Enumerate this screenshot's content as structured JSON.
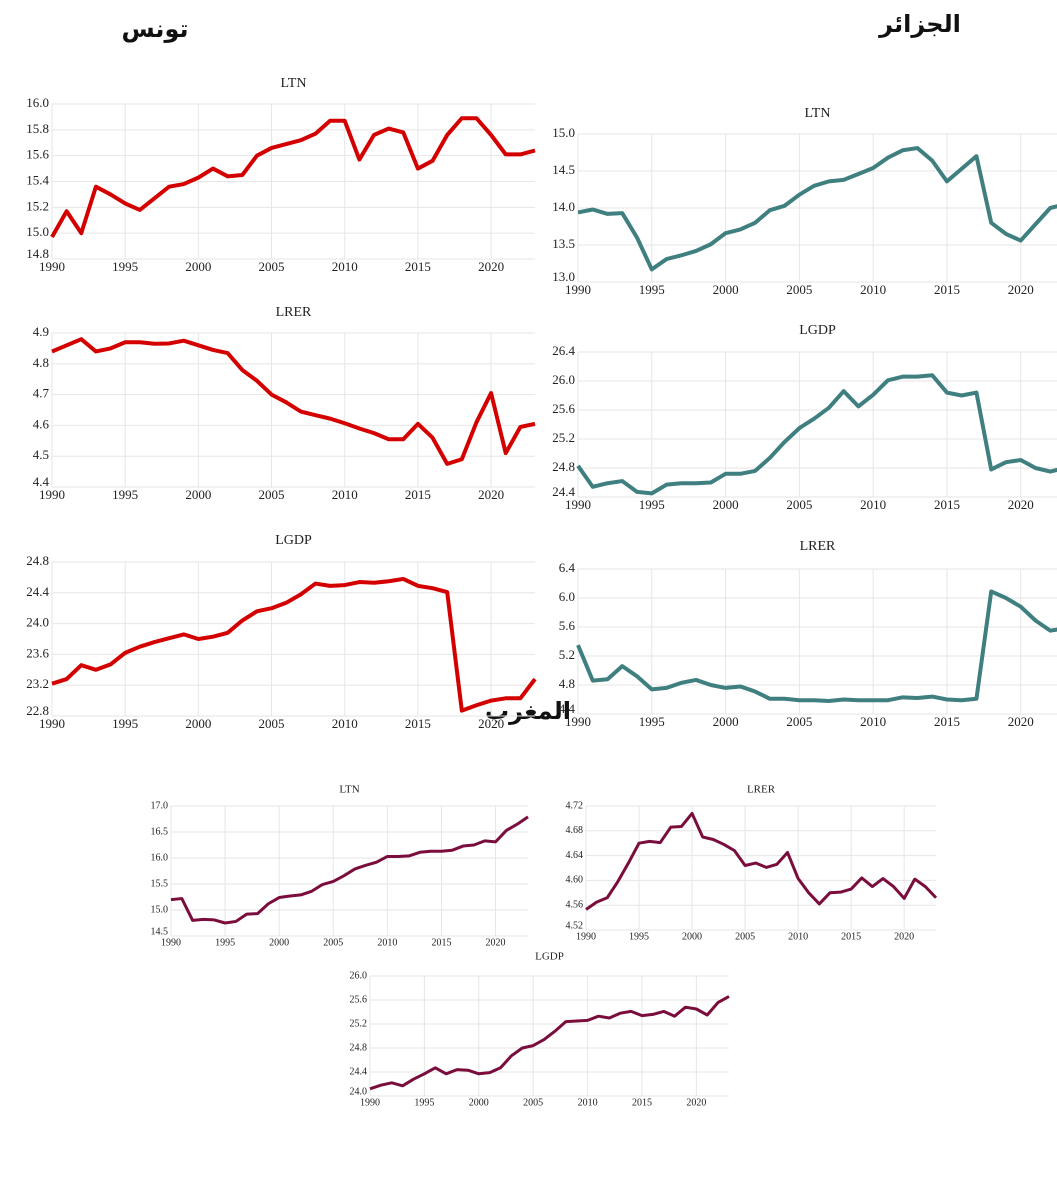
{
  "headings": [
    "تونس",
    "الجزائر",
    "المغرب"
  ],
  "chart_data": [
    {
      "type": "line",
      "title": "LTN",
      "color": "#d40000",
      "x": [
        1990,
        1991,
        1992,
        1993,
        1994,
        1995,
        1996,
        1997,
        1998,
        1999,
        2000,
        2001,
        2002,
        2003,
        2004,
        2005,
        2006,
        2007,
        2008,
        2009,
        2010,
        2011,
        2012,
        2013,
        2014,
        2015,
        2016,
        2017,
        2018,
        2019,
        2020,
        2021,
        2022,
        2023
      ],
      "values": [
        14.97,
        15.17,
        15.0,
        15.36,
        15.3,
        15.23,
        15.18,
        15.27,
        15.36,
        15.38,
        15.43,
        15.5,
        15.44,
        15.45,
        15.6,
        15.66,
        15.69,
        15.72,
        15.77,
        15.87,
        15.87,
        15.57,
        15.76,
        15.81,
        15.78,
        15.5,
        15.56,
        15.76,
        15.89,
        15.89,
        15.76,
        15.61,
        15.61,
        15.64
      ],
      "xlim": [
        1990,
        2023
      ],
      "xticks": [
        1990,
        1995,
        2000,
        2005,
        2010,
        2015,
        2020
      ],
      "ylim": [
        14.8,
        16.0
      ],
      "yticks": [
        14.8,
        {
          "value": 15.0,
          "label": "15.0"
        },
        15.2,
        15.4,
        15.6,
        15.8,
        {
          "value": 16.0,
          "label": "16.0"
        }
      ],
      "grid": true
    },
    {
      "type": "line",
      "title": "LRER",
      "color": "#d40000",
      "x": [
        1990,
        1991,
        1992,
        1993,
        1994,
        1995,
        1996,
        1997,
        1998,
        1999,
        2000,
        2001,
        2002,
        2003,
        2004,
        2005,
        2006,
        2007,
        2008,
        2009,
        2010,
        2011,
        2012,
        2013,
        2014,
        2015,
        2016,
        2017,
        2018,
        2019,
        2020,
        2021,
        2022,
        2023
      ],
      "values": [
        4.84,
        4.86,
        4.88,
        4.84,
        4.85,
        4.87,
        4.87,
        4.865,
        4.866,
        4.875,
        4.86,
        4.845,
        4.835,
        4.78,
        4.745,
        4.7,
        4.675,
        4.645,
        4.633,
        4.622,
        4.607,
        4.59,
        4.575,
        4.555,
        4.555,
        4.605,
        4.56,
        4.475,
        4.49,
        4.61,
        4.705,
        4.51,
        4.595,
        4.605
      ],
      "xlim": [
        1990,
        2023
      ],
      "xticks": [
        1990,
        1995,
        2000,
        2005,
        2010,
        2015,
        2020
      ],
      "ylim": [
        4.4,
        4.9
      ],
      "yticks": [
        4.4,
        4.5,
        4.6,
        4.7,
        4.8,
        4.9
      ],
      "grid": true
    },
    {
      "type": "line",
      "title": "LGDP",
      "color": "#d40000",
      "x": [
        1990,
        1991,
        1992,
        1993,
        1994,
        1995,
        1996,
        1997,
        1998,
        1999,
        2000,
        2001,
        2002,
        2003,
        2004,
        2005,
        2006,
        2007,
        2008,
        2009,
        2010,
        2011,
        2012,
        2013,
        2014,
        2015,
        2016,
        2017,
        2018,
        2019,
        2020,
        2021,
        2022,
        2023
      ],
      "values": [
        23.22,
        23.28,
        23.46,
        23.4,
        23.47,
        23.62,
        23.7,
        23.76,
        23.81,
        23.86,
        23.8,
        23.83,
        23.88,
        24.04,
        24.16,
        24.2,
        24.27,
        24.38,
        24.52,
        24.49,
        24.5,
        24.54,
        24.53,
        24.55,
        24.58,
        24.49,
        24.46,
        24.41,
        22.87,
        22.94,
        23.0,
        23.03,
        23.03,
        23.28
      ],
      "xlim": [
        1990,
        2023
      ],
      "xticks": [
        1990,
        1995,
        2000,
        2005,
        2010,
        2015,
        2020
      ],
      "ylim": [
        22.8,
        24.8
      ],
      "yticks": [
        22.8,
        23.2,
        23.6,
        {
          "value": 24.0,
          "label": "24.0"
        },
        24.4,
        24.8
      ],
      "grid": true
    },
    {
      "type": "line",
      "title": "LTN",
      "color": "#3f7f7f",
      "x": [
        1990,
        1991,
        1992,
        1993,
        1994,
        1995,
        1996,
        1997,
        1998,
        1999,
        2000,
        2001,
        2002,
        2003,
        2004,
        2005,
        2006,
        2007,
        2008,
        2009,
        2010,
        2011,
        2012,
        2013,
        2014,
        2015,
        2016,
        2017,
        2018,
        2019,
        2020,
        2021,
        2022,
        2023
      ],
      "values": [
        13.94,
        13.98,
        13.92,
        13.93,
        13.6,
        13.17,
        13.31,
        13.36,
        13.42,
        13.51,
        13.66,
        13.71,
        13.8,
        13.97,
        14.03,
        14.18,
        14.3,
        14.36,
        14.38,
        14.46,
        14.54,
        14.68,
        14.78,
        14.81,
        14.64,
        14.36,
        14.53,
        14.7,
        13.8,
        13.65,
        13.56,
        13.78,
        14.0,
        14.05
      ],
      "xlim": [
        1990,
        2023
      ],
      "xticks": [
        1990,
        1995,
        2000,
        2005,
        2010,
        2015,
        2020
      ],
      "ylim": [
        13.0,
        15.0
      ],
      "yticks": [
        {
          "value": 13.0,
          "label": "13.0"
        },
        13.5,
        {
          "value": 14.0,
          "label": "14.0"
        },
        14.5,
        {
          "value": 15.0,
          "label": "15.0"
        }
      ],
      "grid": true
    },
    {
      "type": "line",
      "title": "LGDP",
      "color": "#3f7f7f",
      "x": [
        1990,
        1991,
        1992,
        1993,
        1994,
        1995,
        1996,
        1997,
        1998,
        1999,
        2000,
        2001,
        2002,
        2003,
        2004,
        2005,
        2006,
        2007,
        2008,
        2009,
        2010,
        2011,
        2012,
        2013,
        2014,
        2015,
        2016,
        2017,
        2018,
        2019,
        2020,
        2021,
        2022,
        2023
      ],
      "values": [
        24.83,
        24.54,
        24.59,
        24.62,
        24.47,
        24.45,
        24.57,
        24.59,
        24.59,
        24.6,
        24.72,
        24.72,
        24.76,
        24.94,
        25.16,
        25.35,
        25.48,
        25.63,
        25.86,
        25.65,
        25.81,
        26.01,
        26.06,
        26.06,
        26.08,
        25.84,
        25.8,
        25.84,
        24.78,
        24.88,
        24.91,
        24.8,
        24.75,
        24.8
      ],
      "xlim": [
        1990,
        2023
      ],
      "xticks": [
        1990,
        1995,
        2000,
        2005,
        2010,
        2015,
        2020
      ],
      "ylim": [
        24.4,
        26.4
      ],
      "yticks": [
        24.4,
        24.8,
        25.2,
        25.6,
        {
          "value": 26.0,
          "label": "26.0"
        },
        26.4
      ],
      "grid": true
    },
    {
      "type": "line",
      "title": "LRER",
      "color": "#3f7f7f",
      "x": [
        1990,
        1991,
        1992,
        1993,
        1994,
        1995,
        1996,
        1997,
        1998,
        1999,
        2000,
        2001,
        2002,
        2003,
        2004,
        2005,
        2006,
        2007,
        2008,
        2009,
        2010,
        2011,
        2012,
        2013,
        2014,
        2015,
        2016,
        2017,
        2018,
        2019,
        2020,
        2021,
        2022,
        2023
      ],
      "values": [
        5.35,
        4.86,
        4.88,
        5.06,
        4.92,
        4.74,
        4.76,
        4.83,
        4.87,
        4.8,
        4.76,
        4.78,
        4.71,
        4.61,
        4.61,
        4.59,
        4.59,
        4.58,
        4.6,
        4.59,
        4.59,
        4.59,
        4.63,
        4.62,
        4.64,
        4.6,
        4.59,
        4.61,
        6.09,
        6.0,
        5.88,
        5.69,
        5.55,
        5.58
      ],
      "xlim": [
        1990,
        2023
      ],
      "xticks": [
        1990,
        1995,
        2000,
        2005,
        2010,
        2015,
        2020
      ],
      "ylim": [
        4.4,
        6.4
      ],
      "yticks": [
        4.4,
        4.8,
        5.2,
        5.6,
        {
          "value": 6.0,
          "label": "6.0"
        },
        6.4
      ],
      "grid": true
    },
    {
      "type": "line",
      "title": "LTN",
      "color": "#7a0d3c",
      "x": [
        1990,
        1991,
        1992,
        1993,
        1994,
        1995,
        1996,
        1997,
        1998,
        1999,
        2000,
        2001,
        2002,
        2003,
        2004,
        2005,
        2006,
        2007,
        2008,
        2009,
        2010,
        2011,
        2012,
        2013,
        2014,
        2015,
        2016,
        2017,
        2018,
        2019,
        2020,
        2021,
        2022,
        2023
      ],
      "values": [
        15.2,
        15.22,
        14.8,
        14.82,
        14.81,
        14.75,
        14.78,
        14.92,
        14.93,
        15.12,
        15.24,
        15.27,
        15.29,
        15.36,
        15.49,
        15.55,
        15.66,
        15.79,
        15.86,
        15.92,
        16.03,
        16.03,
        16.04,
        16.11,
        16.13,
        16.13,
        16.15,
        16.23,
        16.25,
        16.33,
        16.31,
        16.53,
        16.65,
        16.79
      ],
      "xlim": [
        1990,
        2023
      ],
      "xticks": [
        1990,
        1995,
        2000,
        2005,
        2010,
        2015,
        2020
      ],
      "ylim": [
        14.5,
        17.0
      ],
      "yticks": [
        14.5,
        {
          "value": 15.0,
          "label": "15.0"
        },
        15.5,
        {
          "value": 16.0,
          "label": "16.0"
        },
        16.5,
        {
          "value": 17.0,
          "label": "17.0"
        }
      ],
      "grid": true
    },
    {
      "type": "line",
      "title": "LRER",
      "color": "#7a0d3c",
      "x": [
        1990,
        1991,
        1992,
        1993,
        1994,
        1995,
        1996,
        1997,
        1998,
        1999,
        2000,
        2001,
        2002,
        2003,
        2004,
        2005,
        2006,
        2007,
        2008,
        2009,
        2010,
        2011,
        2012,
        2013,
        2014,
        2015,
        2016,
        2017,
        2018,
        2019,
        2020,
        2021,
        2022,
        2023
      ],
      "values": [
        4.553,
        4.565,
        4.572,
        4.598,
        4.628,
        4.66,
        4.663,
        4.661,
        4.686,
        4.687,
        4.708,
        4.67,
        4.666,
        4.658,
        4.648,
        4.624,
        4.628,
        4.621,
        4.626,
        4.645,
        4.603,
        4.58,
        4.562,
        4.58,
        4.581,
        4.586,
        4.604,
        4.59,
        4.603,
        4.59,
        4.571,
        4.602,
        4.59,
        4.572
      ],
      "xlim": [
        1990,
        2023
      ],
      "xticks": [
        1990,
        1995,
        2000,
        2005,
        2010,
        2015,
        2020
      ],
      "ylim": [
        4.52,
        4.72
      ],
      "yticks": [
        4.52,
        4.56,
        {
          "value": 4.6,
          "label": "4.60"
        },
        4.64,
        4.68,
        4.72
      ],
      "grid": true
    },
    {
      "type": "line",
      "title": "LGDP",
      "color": "#7a0d3c",
      "x": [
        1990,
        1991,
        1992,
        1993,
        1994,
        1995,
        1996,
        1997,
        1998,
        1999,
        2000,
        2001,
        2002,
        2003,
        2004,
        2005,
        2006,
        2007,
        2008,
        2009,
        2010,
        2011,
        2012,
        2013,
        2014,
        2015,
        2016,
        2017,
        2018,
        2019,
        2020,
        2021,
        2022,
        2023
      ],
      "values": [
        24.12,
        24.18,
        24.22,
        24.17,
        24.28,
        24.37,
        24.47,
        24.37,
        24.44,
        24.43,
        24.37,
        24.39,
        24.47,
        24.67,
        24.8,
        24.84,
        24.94,
        25.08,
        25.24,
        25.25,
        25.26,
        25.33,
        25.3,
        25.38,
        25.41,
        25.34,
        25.36,
        25.41,
        25.33,
        25.48,
        25.45,
        25.35,
        25.56,
        25.66
      ],
      "xlim": [
        1990,
        2023
      ],
      "xticks": [
        1990,
        1995,
        2000,
        2005,
        2010,
        2015,
        2020
      ],
      "ylim": [
        24.0,
        26.0
      ],
      "yticks": [
        {
          "value": 24.0,
          "label": "24.0"
        },
        24.4,
        24.8,
        25.2,
        25.6,
        {
          "value": 26.0,
          "label": "26.0"
        }
      ],
      "grid": true
    }
  ]
}
